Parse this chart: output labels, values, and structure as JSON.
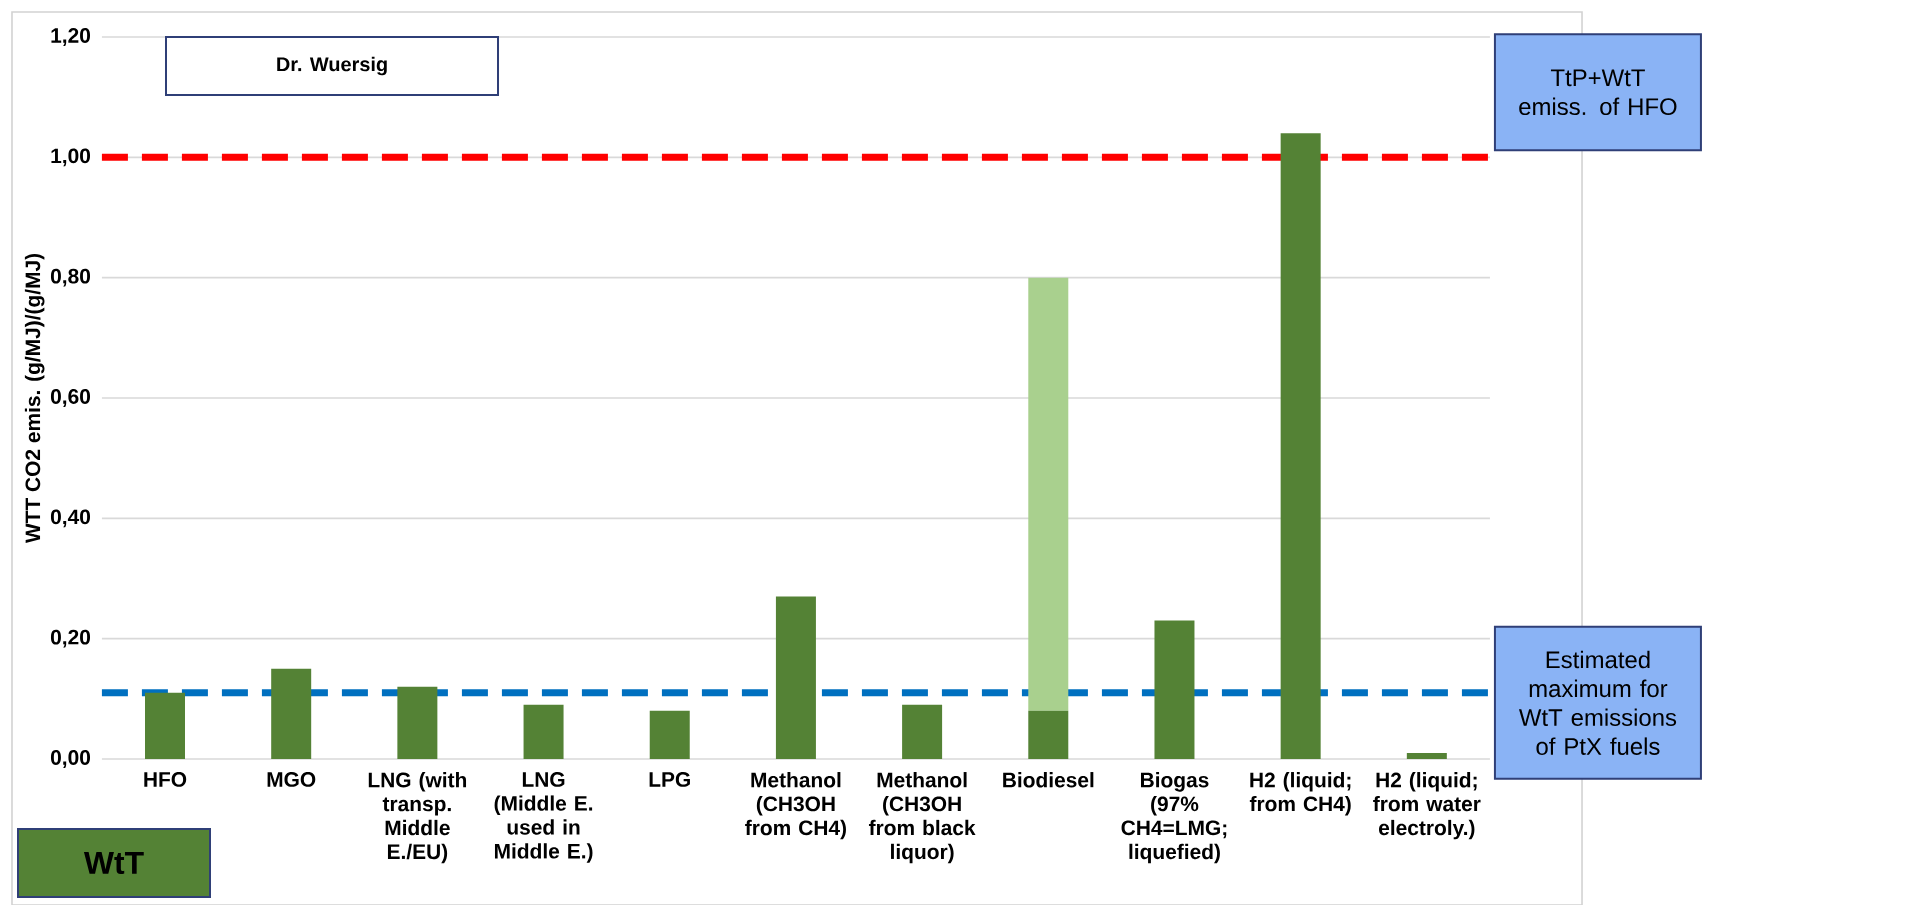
{
  "chart_data": {
    "type": "bar",
    "stacked": true,
    "grid": "y",
    "ylabel": "WTT CO2 emis. (g/MJ)/(g/MJ)",
    "categories": [
      "HFO",
      "MGO",
      "LNG (with transp. Middle E./EU)",
      "LNG (Middle E. used in Middle E.)",
      "LPG",
      "Methanol (CH3OH from CH4)",
      "Methanol (CH3OH from black liquor)",
      "Biodiesel",
      "Biogas (97% CH4=LMG; liquefied)",
      "H2 (liquid; from CH4)",
      "H2 (liquid; from water electroly.)"
    ],
    "series": [
      {
        "color": "#548235",
        "values": [
          0.11,
          0.15,
          0.12,
          0.09,
          0.08,
          0.27,
          0.09,
          0.08,
          0.23,
          1.04,
          0.01
        ]
      },
      {
        "color": "#a9d08e",
        "values": [
          null,
          null,
          null,
          null,
          null,
          null,
          null,
          0.72,
          null,
          null,
          null
        ]
      }
    ],
    "ylim": [
      0,
      1.2
    ],
    "yticks": [
      {
        "value": 0,
        "label": "0,00"
      },
      {
        "value": 0.2,
        "label": "0,20"
      },
      {
        "value": 0.4,
        "label": "0,40"
      },
      {
        "value": 0.6,
        "label": "0,60"
      },
      {
        "value": 0.8,
        "label": "0,80"
      },
      {
        "value": 1.0,
        "label": "1,00"
      },
      {
        "value": 1.2,
        "label": "1,20"
      }
    ],
    "ref_lines": [
      {
        "axis": "y",
        "value": 1.0,
        "label": "TtP+WtT emiss. of HFO",
        "color": "#ff0000",
        "line_style": "dashed"
      },
      {
        "axis": "y",
        "value": 0.11,
        "label": "Estimated maximum for WtT emissions of PtX fuels",
        "color": "#0070c0",
        "line_style": "dashed"
      }
    ],
    "annotations": [
      "Dr. Wuersig",
      "WtT"
    ]
  }
}
